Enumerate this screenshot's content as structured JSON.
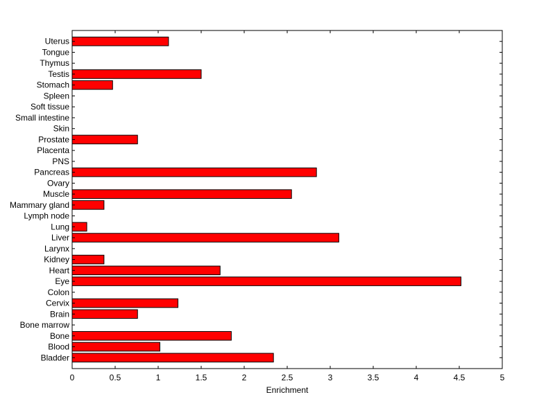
{
  "chart_data": {
    "type": "bar",
    "orientation": "horizontal",
    "title": "",
    "xlabel": "Enrichment",
    "ylabel": "",
    "xlim": [
      0,
      5
    ],
    "xticks": [
      "0",
      "0.5",
      "1",
      "1.5",
      "2",
      "2.5",
      "3",
      "3.5",
      "4",
      "4.5",
      "5"
    ],
    "grid": false,
    "bar_color": "#ff0000",
    "bar_edge_color": "#000000",
    "categories": [
      "Bladder",
      "Blood",
      "Bone",
      "Bone marrow",
      "Brain",
      "Cervix",
      "Colon",
      "Eye",
      "Heart",
      "Kidney",
      "Larynx",
      "Liver",
      "Lung",
      "Lymph node",
      "Mammary gland",
      "Muscle",
      "Ovary",
      "Pancreas",
      "PNS",
      "Placenta",
      "Prostate",
      "Skin",
      "Small intestine",
      "Soft tissue",
      "Spleen",
      "Stomach",
      "Testis",
      "Thymus",
      "Tongue",
      "Uterus"
    ],
    "values": [
      2.34,
      1.02,
      1.85,
      0,
      0.76,
      1.23,
      0,
      4.52,
      1.72,
      0.37,
      0,
      3.1,
      0.17,
      0,
      0.37,
      2.55,
      0,
      2.84,
      0,
      0,
      0.76,
      0,
      0,
      0,
      0,
      0.47,
      1.5,
      0,
      0,
      1.12
    ]
  }
}
